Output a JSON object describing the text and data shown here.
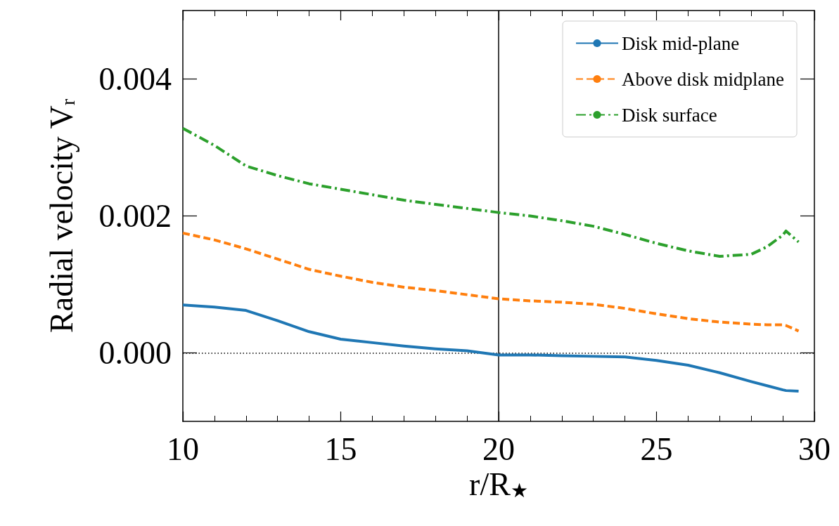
{
  "chart_data": {
    "type": "line",
    "xlabel": "r/R$_{★}$",
    "ylabel": "Radial velocity V$_{r}$",
    "xlim": [
      10,
      30
    ],
    "xticks": [
      10,
      15,
      20,
      25,
      30
    ],
    "ylim": [
      -0.001,
      0.005
    ],
    "yticks": [
      {
        "value": 0,
        "label": "0.000"
      },
      {
        "value": 0.002,
        "label": "0.002"
      },
      {
        "value": 0.004,
        "label": "0.004"
      }
    ],
    "legend": "top right",
    "grid": false,
    "marker": "none",
    "ref_lines": [
      {
        "axis": "y",
        "value": 0,
        "label": null,
        "color": "#000000",
        "line_style": "dotted"
      },
      {
        "axis": "x",
        "value": 20,
        "label": null,
        "color": "#000000",
        "line_style": "solid"
      }
    ],
    "x": [
      10,
      11,
      12,
      13,
      14,
      15,
      16,
      17,
      18,
      19,
      20,
      21,
      22,
      23,
      24,
      25,
      26,
      27,
      28,
      28.5,
      29,
      29.1,
      29.5
    ],
    "series": [
      {
        "name": "Disk mid-plane",
        "color": "#1f77b4",
        "line_style": "solid",
        "values": [
          0.0007,
          0.00067,
          0.00062,
          0.00047,
          0.00031,
          0.0002,
          0.00015,
          0.0001,
          6e-05,
          3e-05,
          -3e-05,
          -3e-05,
          -4e-05,
          -5e-05,
          -6e-05,
          -0.00011,
          -0.00018,
          -0.00029,
          -0.00042,
          -0.00048,
          -0.00054,
          -0.00055,
          -0.00056
        ]
      },
      {
        "name": "Above disk midplane",
        "color": "#ff7f0e",
        "line_style": "dashed",
        "values": [
          0.00175,
          0.00165,
          0.00152,
          0.00137,
          0.00122,
          0.00112,
          0.00103,
          0.00096,
          0.00091,
          0.00085,
          0.00079,
          0.00076,
          0.00074,
          0.00071,
          0.00065,
          0.00057,
          0.0005,
          0.00045,
          0.00042,
          0.00041,
          0.00041,
          0.0004,
          0.00032
        ]
      },
      {
        "name": "Disk surface",
        "color": "#2ca02c",
        "line_style": "dashdot",
        "values": [
          0.00328,
          0.00303,
          0.00273,
          0.00259,
          0.00247,
          0.00239,
          0.00231,
          0.00223,
          0.00217,
          0.00211,
          0.00205,
          0.002,
          0.00193,
          0.00185,
          0.00173,
          0.0016,
          0.00149,
          0.00141,
          0.00144,
          0.00155,
          0.00172,
          0.00178,
          0.00162
        ]
      }
    ]
  }
}
